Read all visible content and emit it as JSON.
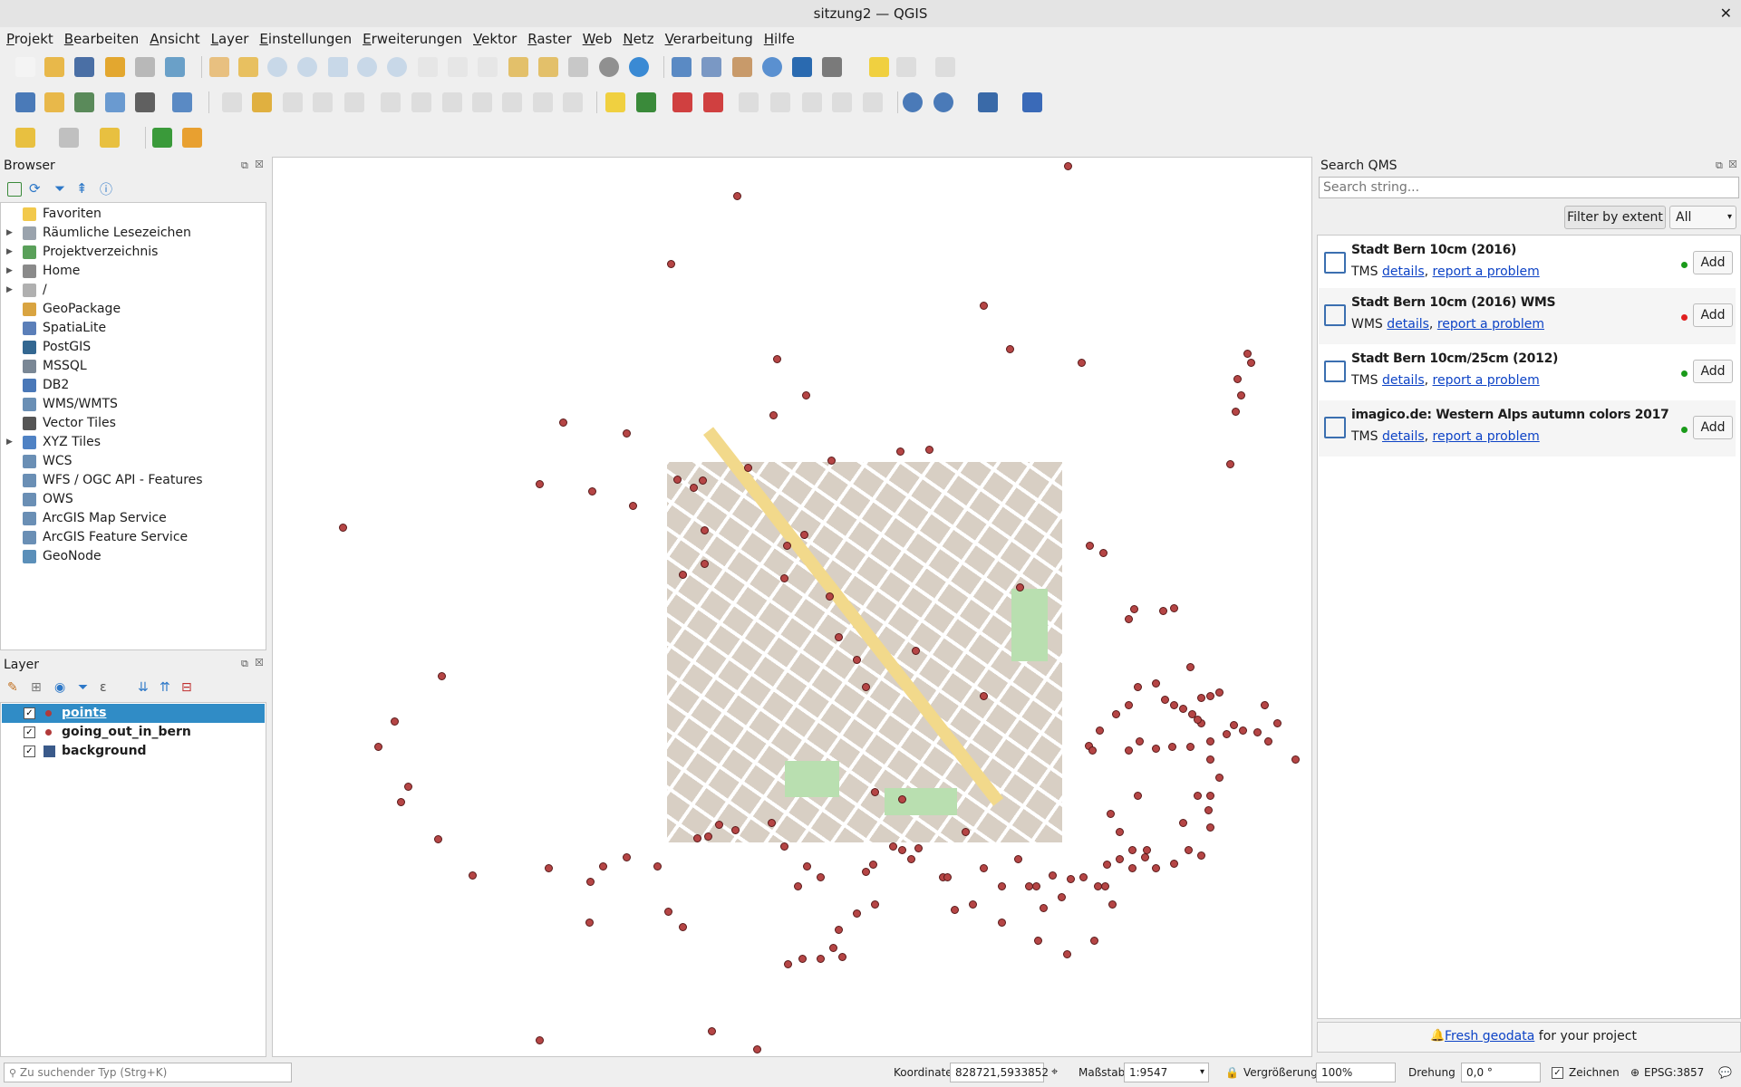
{
  "window": {
    "title": "sitzung2 — QGIS",
    "close_glyph": "✕"
  },
  "menu": [
    "Projekt",
    "Bearbeiten",
    "Ansicht",
    "Layer",
    "Einstellungen",
    "Erweiterungen",
    "Vektor",
    "Raster",
    "Web",
    "Netz",
    "Verarbeitung",
    "Hilfe"
  ],
  "browser": {
    "title": "Browser",
    "items": [
      {
        "label": "Favoriten",
        "icon": "star-icon",
        "expandable": false,
        "color": "#f2c94c"
      },
      {
        "label": "Räumliche Lesezeichen",
        "icon": "bookmark-icon",
        "expandable": true,
        "color": "#9aa3ad"
      },
      {
        "label": "Projektverzeichnis",
        "icon": "project-folder-icon",
        "expandable": true,
        "color": "#5aa05a"
      },
      {
        "label": "Home",
        "icon": "home-icon",
        "expandable": true,
        "color": "#8a8a8a"
      },
      {
        "label": "/",
        "icon": "folder-icon",
        "expandable": true,
        "color": "#b0b0b0"
      },
      {
        "label": "GeoPackage",
        "icon": "geopackage-icon",
        "expandable": false,
        "color": "#d9a441"
      },
      {
        "label": "SpatiaLite",
        "icon": "spatialite-icon",
        "expandable": false,
        "color": "#5b7fb9"
      },
      {
        "label": "PostGIS",
        "icon": "postgis-icon",
        "expandable": false,
        "color": "#336791"
      },
      {
        "label": "MSSQL",
        "icon": "mssql-icon",
        "expandable": false,
        "color": "#7a8795"
      },
      {
        "label": "DB2",
        "icon": "db2-icon",
        "expandable": false,
        "color": "#4a78b8"
      },
      {
        "label": "WMS/WMTS",
        "icon": "wms-icon",
        "expandable": false,
        "color": "#6a8fb5"
      },
      {
        "label": "Vector Tiles",
        "icon": "vector-tiles-icon",
        "expandable": false,
        "color": "#555555"
      },
      {
        "label": "XYZ Tiles",
        "icon": "xyz-tiles-icon",
        "expandable": true,
        "color": "#4f82c4"
      },
      {
        "label": "WCS",
        "icon": "wcs-icon",
        "expandable": false,
        "color": "#6a8fb5"
      },
      {
        "label": "WFS / OGC API - Features",
        "icon": "wfs-icon",
        "expandable": false,
        "color": "#6a8fb5"
      },
      {
        "label": "OWS",
        "icon": "ows-icon",
        "expandable": false,
        "color": "#6a8fb5"
      },
      {
        "label": "ArcGIS Map Service",
        "icon": "arcgis-map-icon",
        "expandable": false,
        "color": "#6a8fb5"
      },
      {
        "label": "ArcGIS Feature Service",
        "icon": "arcgis-feature-icon",
        "expandable": false,
        "color": "#6a8fb5"
      },
      {
        "label": "GeoNode",
        "icon": "geonode-icon",
        "expandable": false,
        "color": "#5b8fb9"
      }
    ]
  },
  "layers": {
    "title": "Layer",
    "items": [
      {
        "name": "points",
        "checked": true,
        "selected": true,
        "check_glyph": "✓"
      },
      {
        "name": "going_out_in_bern",
        "checked": true,
        "selected": false,
        "check_glyph": "✓"
      },
      {
        "name": "background",
        "checked": true,
        "selected": false,
        "check_glyph": "✓"
      }
    ]
  },
  "qms": {
    "title": "Search QMS",
    "search_placeholder": "Search string...",
    "filter_button": "Filter by extent",
    "type_select": "All",
    "results": [
      {
        "name": "Stadt Bern 10cm (2016)",
        "type": "TMS",
        "details": "details",
        "sep": ",",
        "report": "report a problem",
        "status_color": "#1a9a1a",
        "add": "Add"
      },
      {
        "name": "Stadt Bern 10cm (2016) WMS",
        "type": "WMS",
        "details": "details",
        "sep": ",",
        "report": "report a problem",
        "status_color": "#e02020",
        "add": "Add"
      },
      {
        "name": "Stadt Bern 10cm/25cm (2012)",
        "type": "TMS",
        "details": "details",
        "sep": ",",
        "report": "report a problem",
        "status_color": "#1a9a1a",
        "add": "Add"
      },
      {
        "name": "imagico.de: Western Alps autumn colors 2017",
        "type": "TMS",
        "details": "details",
        "sep": ",",
        "report": "report a problem",
        "status_color": "#1a9a1a",
        "add": "Add"
      }
    ],
    "footer_link": "Fresh geodata",
    "footer_text": " for your project"
  },
  "status": {
    "locator_placeholder": "Zu suchender Typ (Strg+K)",
    "coord_label": "Koordinate",
    "coord_value": "828721,5933852",
    "scale_label": "Maßstab",
    "scale_value": "1:9547",
    "magnifier_label": "Vergrößerung",
    "magnifier_value": "100%",
    "rotation_label": "Drehung",
    "rotation_value": "0,0 °",
    "render_label": "Zeichnen",
    "render_check_glyph": "✓",
    "crs": "EPSG:3857"
  }
}
